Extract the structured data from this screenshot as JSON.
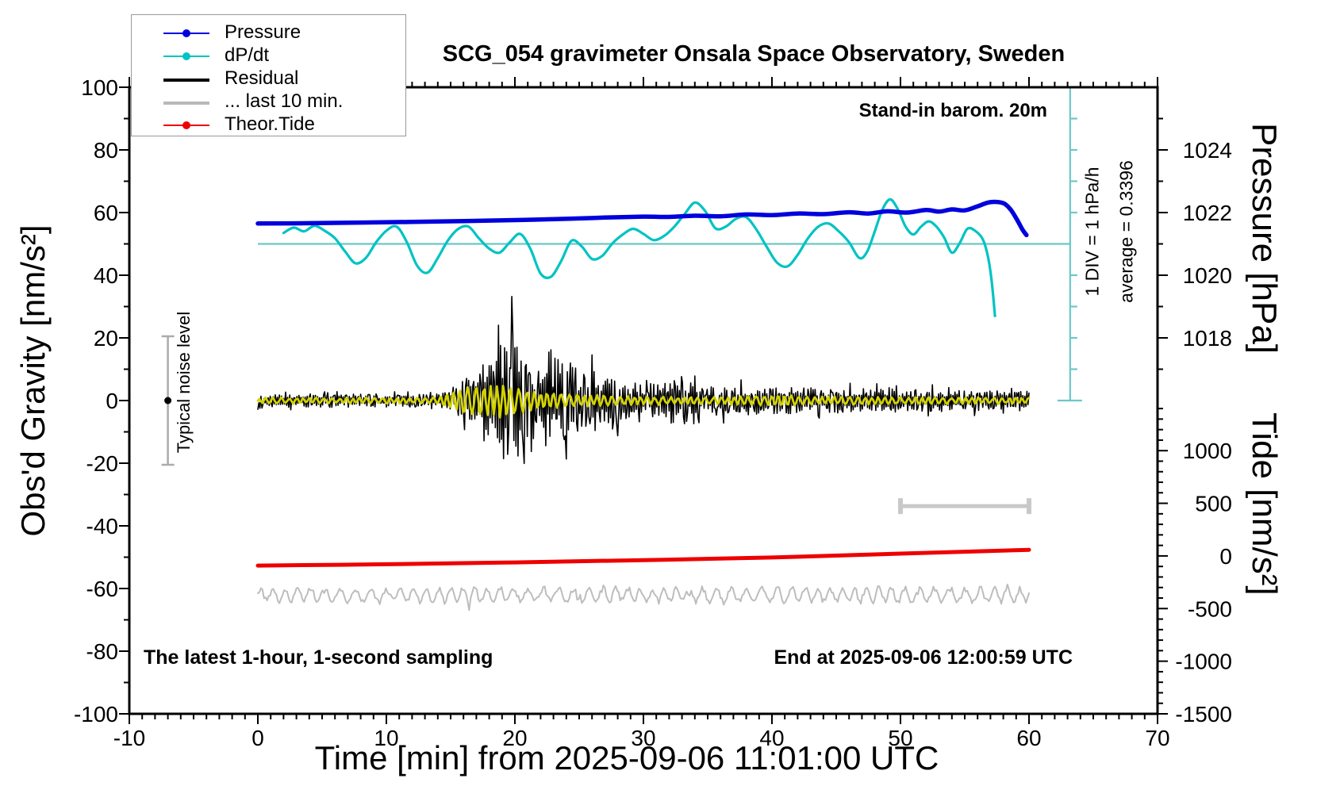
{
  "title": "SCG_054 gravimeter Onsala Space Observatory, Sweden",
  "annotations": {
    "barom": "Stand-in barom. 20m",
    "div_scale": "1 DIV = 1 hPa/h",
    "average": "average = 0.3396",
    "noise_level": "Typical noise level",
    "sampling_note": "The latest 1-hour, 1-second sampling",
    "end_time": "End at 2025-09-06 12:00:59 UTC"
  },
  "legend": {
    "items": [
      {
        "label": "Pressure",
        "color": "#0000dd",
        "marker": "dot",
        "thickness": 2.5
      },
      {
        "label": "dP/dt",
        "color": "#00c3c3",
        "marker": "dot",
        "thickness": 2.5
      },
      {
        "label": "Residual",
        "color": "#000000",
        "marker": "none",
        "thickness": 4
      },
      {
        "label": "... last 10 min.",
        "color": "#b9b9b9",
        "marker": "none",
        "thickness": 4
      },
      {
        "label": "Theor.Tide",
        "color": "#ee0000",
        "marker": "dot",
        "thickness": 2.5
      }
    ]
  },
  "chart_data": {
    "type": "line",
    "title": "SCG_054 gravimeter Onsala Space Observatory, Sweden",
    "xlabel": "Time [min] from 2025-09-06 11:01:00 UTC",
    "ylabel_left": "Obs'd Gravity [nm/s²]",
    "ylabel_right_top": "Pressure [hPa]",
    "ylabel_right_bottom": "Tide [nm/s²]",
    "x_range": [
      -10,
      70
    ],
    "x_ticks_major": [
      -10,
      0,
      10,
      20,
      30,
      40,
      50,
      60,
      70
    ],
    "x_minor_step": 1,
    "gravity_range": [
      -100,
      100
    ],
    "gravity_ticks_major": [
      -100,
      -80,
      -60,
      -40,
      -20,
      0,
      20,
      40,
      60,
      80,
      100
    ],
    "gravity_minor_step": 10,
    "pressure_ticks_labeled": [
      1018,
      1020,
      1022,
      1024
    ],
    "pressure_minor_ticks": [
      1017,
      1018,
      1019,
      1020,
      1021,
      1022,
      1023,
      1024,
      1025
    ],
    "pressure_to_gravity": {
      "p_ref": 1022,
      "g_ref": 60,
      "g_per_hPa": 10
    },
    "tide_ticks_labeled": [
      1000,
      500,
      0,
      -500,
      -1000,
      -1500
    ],
    "tide_minor_step": 100,
    "tide_minor_max": 1500,
    "tide_to_gravity": {
      "td_ref": 0,
      "g_ref": -49.6,
      "g_per_unit": 0.0336
    },
    "dpdt_to_gravity": {
      "v_ref": 0,
      "g_ref": 50,
      "g_per_unit": 10
    },
    "dpdt_zero_line": {
      "t_start": 0,
      "t_end": 63.2,
      "dpdt_value": 0
    },
    "dpdt_scalebar": {
      "t": 63.2,
      "gravity_top": 100,
      "gravity_bottom": 0,
      "divisions": 10
    },
    "last10min_bar": {
      "t_start": 50,
      "t_end": 60,
      "gravity": -33.7
    },
    "noise_bar": {
      "t": -7,
      "gravity_min": -20.5,
      "gravity_max": 20.5,
      "dot_gravity": 0
    },
    "series": {
      "pressure_hPa": {
        "x": [
          0,
          4,
          8,
          12,
          16,
          20,
          24,
          27,
          30,
          32,
          34,
          36,
          38,
          40,
          42,
          44,
          46,
          47.5,
          49,
          50.5,
          52,
          53,
          54,
          55,
          56,
          56.8,
          57.5,
          58.1,
          58.6,
          59.1,
          59.5,
          59.8
        ],
        "y": [
          1021.65,
          1021.66,
          1021.68,
          1021.7,
          1021.73,
          1021.76,
          1021.8,
          1021.84,
          1021.87,
          1021.86,
          1021.9,
          1021.88,
          1021.94,
          1021.92,
          1021.97,
          1021.95,
          1022.01,
          1021.97,
          1022.04,
          1022.0,
          1022.08,
          1022.03,
          1022.1,
          1022.07,
          1022.2,
          1022.32,
          1022.34,
          1022.28,
          1022.08,
          1021.75,
          1021.45,
          1021.28
        ]
      },
      "dpdt_hPa_per_h": {
        "x": [
          2,
          2.8,
          3.6,
          4.4,
          5.2,
          6,
          6.8,
          7.6,
          8.4,
          9.2,
          10,
          10.8,
          11.6,
          12.4,
          13.2,
          14,
          14.8,
          15.6,
          16.4,
          17.2,
          18,
          18.8,
          19.6,
          20.4,
          21.2,
          22,
          22.8,
          23.6,
          24.4,
          25.2,
          26,
          26.8,
          27.6,
          28.4,
          29.2,
          30,
          30.8,
          31.6,
          32.4,
          33.2,
          34,
          34.8,
          35.6,
          36.4,
          37.2,
          38,
          38.8,
          39.6,
          40.4,
          41.2,
          42,
          42.8,
          43.6,
          44.4,
          45.2,
          46,
          46.8,
          47.4,
          48,
          48.6,
          49.2,
          49.8,
          50.4,
          51,
          51.6,
          52.2,
          52.8,
          53.4,
          54,
          54.6,
          55.2,
          55.8,
          56.4,
          56.8,
          57.1,
          57.35
        ],
        "y": [
          0.35,
          0.52,
          0.4,
          0.58,
          0.42,
          0.18,
          -0.25,
          -0.62,
          -0.45,
          0.05,
          0.42,
          0.55,
          0.05,
          -0.7,
          -0.92,
          -0.45,
          0.12,
          0.48,
          0.55,
          0.18,
          -0.15,
          -0.28,
          0.05,
          0.32,
          -0.15,
          -0.95,
          -1.05,
          -0.55,
          0.1,
          -0.08,
          -0.48,
          -0.38,
          0.02,
          0.3,
          0.48,
          0.32,
          0.12,
          0.25,
          0.55,
          0.95,
          1.32,
          1.05,
          0.5,
          0.55,
          0.8,
          0.85,
          0.45,
          -0.1,
          -0.6,
          -0.72,
          -0.35,
          0.18,
          0.55,
          0.65,
          0.4,
          0.05,
          -0.45,
          -0.25,
          0.4,
          1.1,
          1.42,
          1.1,
          0.55,
          0.3,
          0.55,
          0.72,
          0.55,
          0.2,
          -0.28,
          0.02,
          0.48,
          0.42,
          0.15,
          -0.4,
          -1.2,
          -2.3
        ]
      },
      "theor_tide_nms2": {
        "x": [
          0,
          10,
          20,
          30,
          40,
          50,
          60
        ],
        "y": [
          -92,
          -79,
          -62,
          -40,
          -15,
          22,
          58
        ]
      },
      "residual": {
        "mean_gravity": 0,
        "seed": 77,
        "envelope": [
          [
            0,
            2.1
          ],
          [
            6,
            2.2
          ],
          [
            10,
            2.1
          ],
          [
            14,
            2.2
          ],
          [
            14.8,
            2.6
          ],
          [
            15.4,
            4
          ],
          [
            16,
            6.5
          ],
          [
            16.8,
            9
          ],
          [
            17.6,
            13
          ],
          [
            18.4,
            17
          ],
          [
            19,
            21
          ],
          [
            19.5,
            25
          ],
          [
            19.9,
            22
          ],
          [
            20.4,
            16
          ],
          [
            21,
            12
          ],
          [
            21.8,
            10
          ],
          [
            22.6,
            12
          ],
          [
            23.3,
            15
          ],
          [
            23.9,
            15.5
          ],
          [
            24.5,
            11
          ],
          [
            25.2,
            9
          ],
          [
            26,
            11
          ],
          [
            26.8,
            9
          ],
          [
            27.6,
            9.5
          ],
          [
            28.4,
            7
          ],
          [
            29.5,
            6
          ],
          [
            31,
            5.5
          ],
          [
            32.4,
            8
          ],
          [
            33,
            8.5
          ],
          [
            33.6,
            6
          ],
          [
            35,
            5.2
          ],
          [
            37,
            4.8
          ],
          [
            39,
            4.4
          ],
          [
            42,
            4.2
          ],
          [
            45,
            4.0
          ],
          [
            48,
            3.8
          ],
          [
            52,
            3.6
          ],
          [
            56,
            3.4
          ],
          [
            60,
            3.3
          ]
        ]
      },
      "residual_smooth": {
        "color_note": "yellow overlay",
        "seed": 13,
        "envelope": [
          [
            0,
            0.9
          ],
          [
            14,
            0.9
          ],
          [
            15,
            2.5
          ],
          [
            16,
            4.5
          ],
          [
            17,
            5.3
          ],
          [
            18,
            5.0
          ],
          [
            19,
            5.4
          ],
          [
            20,
            4.6
          ],
          [
            21,
            3.6
          ],
          [
            22,
            2.8
          ],
          [
            23.5,
            2.2
          ],
          [
            25,
            1.9
          ],
          [
            27,
            1.6
          ],
          [
            29,
            1.3
          ],
          [
            32,
            1.2
          ],
          [
            36,
            1.2
          ],
          [
            40,
            1.5
          ],
          [
            41,
            2.1
          ],
          [
            42,
            1.4
          ],
          [
            46,
            1.2
          ],
          [
            52,
            1.1
          ],
          [
            60,
            1.0
          ]
        ]
      },
      "last10min_trace": {
        "center_gravity": -62,
        "amplitude": 2.4,
        "seed": 5,
        "t_start": 0,
        "t_end": 60
      }
    },
    "colors": {
      "pressure": "#0000dd",
      "dpdt": "#00c3c3",
      "dpdt_zero": "#6cc8c8",
      "residual": "#000000",
      "residual_smooth": "#d2d200",
      "last10": "#bdbdbd",
      "last10_bar": "#c9c9c9",
      "tide": "#ee0000",
      "noise_bar": "#ababab",
      "frame": "#000000"
    }
  }
}
